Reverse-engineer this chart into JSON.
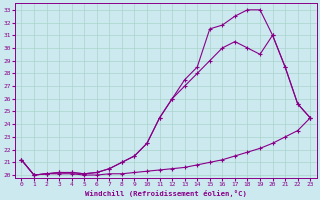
{
  "xlabel": "Windchill (Refroidissement éolien,°C)",
  "bg_color": "#cde9f0",
  "line_color": "#880088",
  "grid_color": "#aad4cc",
  "xlim": [
    -0.5,
    23.5
  ],
  "ylim": [
    19.8,
    33.5
  ],
  "yticks": [
    20,
    21,
    22,
    23,
    24,
    25,
    26,
    27,
    28,
    29,
    30,
    31,
    32,
    33
  ],
  "xticks": [
    0,
    1,
    2,
    3,
    4,
    5,
    6,
    7,
    8,
    9,
    10,
    11,
    12,
    13,
    14,
    15,
    16,
    17,
    18,
    19,
    20,
    21,
    22,
    23
  ],
  "line1_x": [
    0,
    1,
    2,
    3,
    4,
    5,
    6,
    7,
    8,
    9,
    10,
    11,
    12,
    13,
    14,
    15,
    16,
    17,
    18,
    19,
    20,
    21,
    22,
    23
  ],
  "line1_y": [
    21.2,
    20.0,
    20.1,
    20.1,
    20.1,
    20.0,
    20.0,
    20.1,
    20.1,
    20.2,
    20.3,
    20.4,
    20.5,
    20.6,
    20.8,
    21.0,
    21.2,
    21.5,
    21.8,
    22.1,
    22.5,
    23.0,
    23.5,
    24.5
  ],
  "line2_x": [
    0,
    1,
    2,
    3,
    4,
    5,
    6,
    7,
    8,
    9,
    10,
    11,
    12,
    13,
    14,
    15,
    16,
    17,
    18,
    19,
    20,
    21,
    22,
    23
  ],
  "line2_y": [
    21.2,
    20.0,
    20.1,
    20.2,
    20.2,
    20.1,
    20.2,
    20.5,
    21.0,
    21.5,
    22.5,
    24.5,
    26.0,
    27.0,
    28.0,
    29.0,
    30.0,
    30.5,
    30.0,
    29.5,
    31.0,
    28.5,
    25.6,
    24.5
  ],
  "line3_x": [
    0,
    1,
    2,
    3,
    4,
    5,
    6,
    7,
    8,
    9,
    10,
    11,
    12,
    13,
    14,
    15,
    16,
    17,
    18,
    19,
    20,
    21,
    22,
    23
  ],
  "line3_y": [
    21.2,
    20.0,
    20.1,
    20.2,
    20.2,
    20.1,
    20.2,
    20.5,
    21.0,
    21.5,
    22.5,
    24.5,
    26.0,
    27.5,
    28.5,
    31.5,
    31.8,
    32.5,
    33.0,
    33.0,
    31.0,
    28.5,
    25.6,
    24.5
  ]
}
